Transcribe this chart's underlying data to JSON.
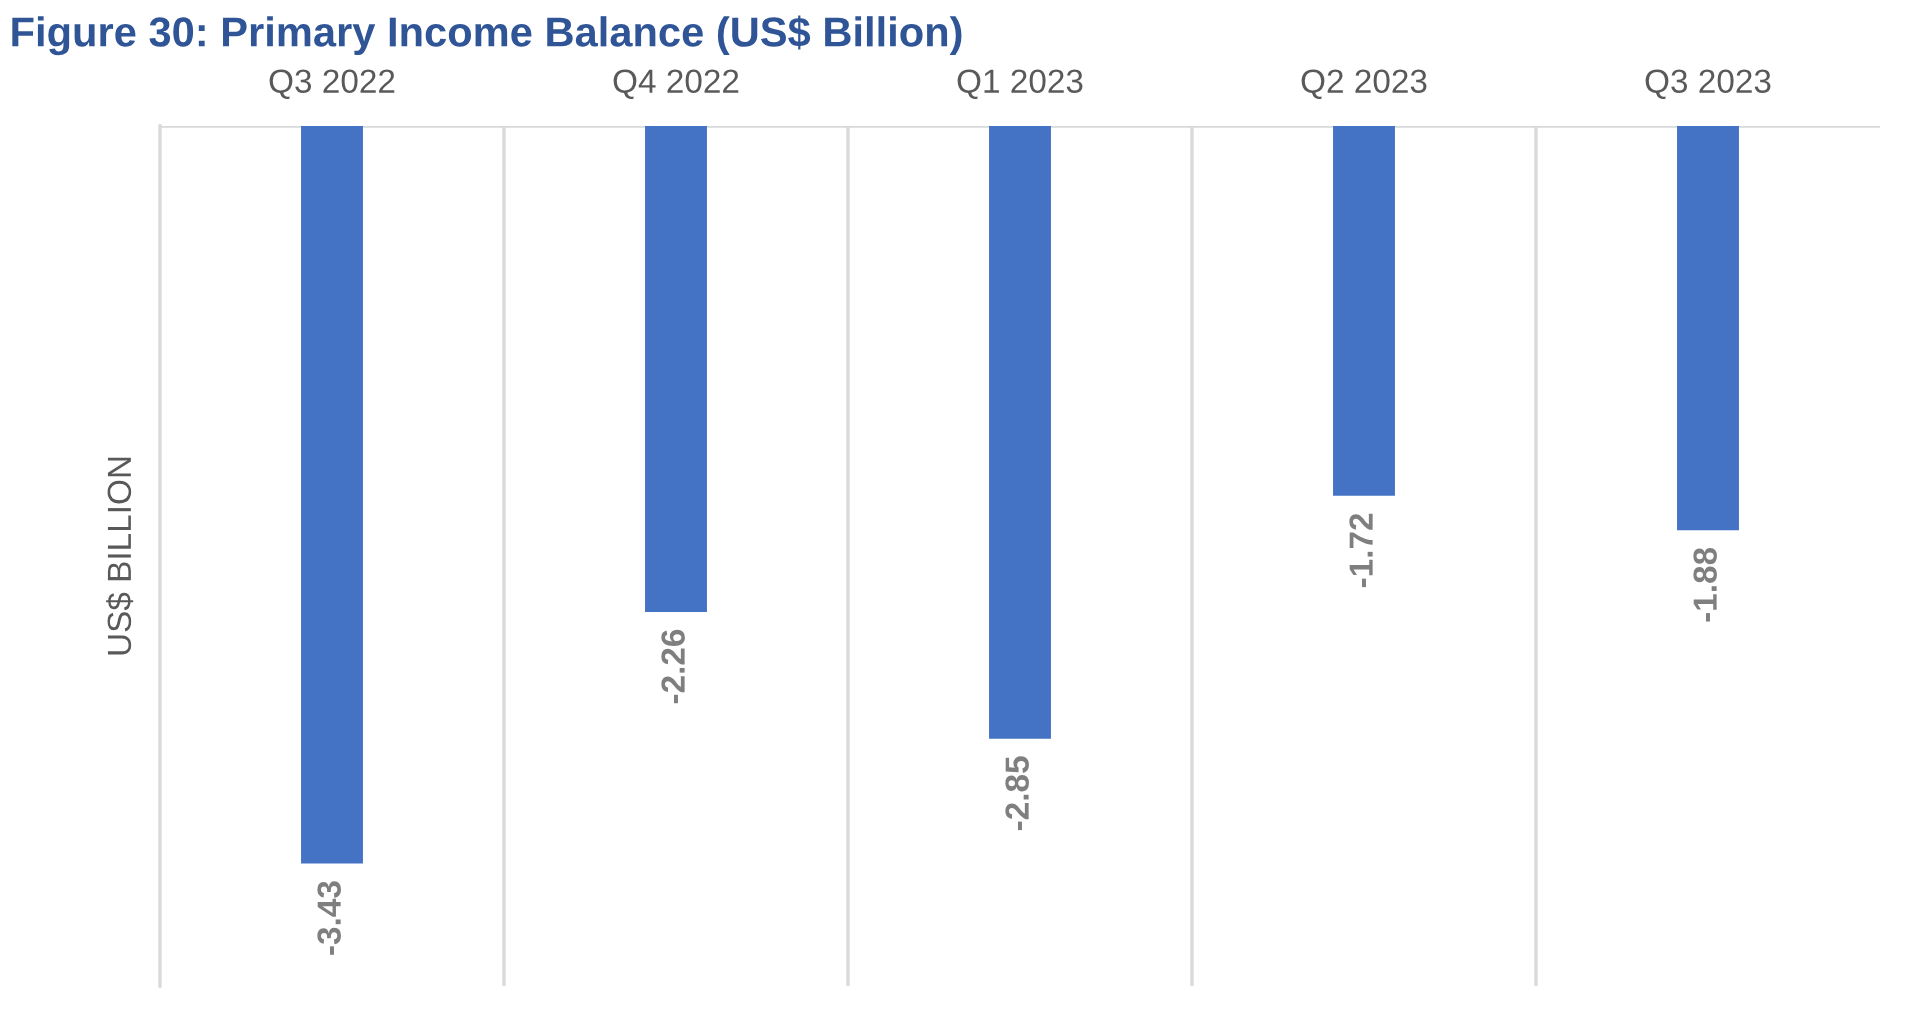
{
  "chart_data": {
    "type": "bar",
    "title": "Figure 30: Primary Income Balance (US$ Billion)",
    "ylabel": "US$ BILLION",
    "categories": [
      "Q3 2022",
      "Q4 2022",
      "Q1 2023",
      "Q2 2023",
      "Q3 2023"
    ],
    "values": [
      -3.43,
      -2.26,
      -2.85,
      -1.72,
      -1.88
    ],
    "color": "#4472c4",
    "ylim": [
      -4,
      0
    ],
    "tick_labels": "x",
    "data_labels": true,
    "grid": "x",
    "legend": false
  }
}
